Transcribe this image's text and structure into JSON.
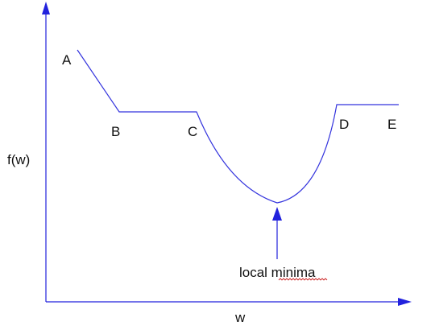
{
  "axes": {
    "y_label": "f(w)",
    "x_label": "w"
  },
  "points": {
    "a": "A",
    "b": "B",
    "c": "C",
    "d": "D",
    "e": "E"
  },
  "annotation": {
    "text": "local minima"
  },
  "colors": {
    "axis": "#2222dd",
    "curve": "#3333dd",
    "arrow": "#2222dd",
    "text": "#111111",
    "spellcheck_underline": "#cc2222"
  }
}
